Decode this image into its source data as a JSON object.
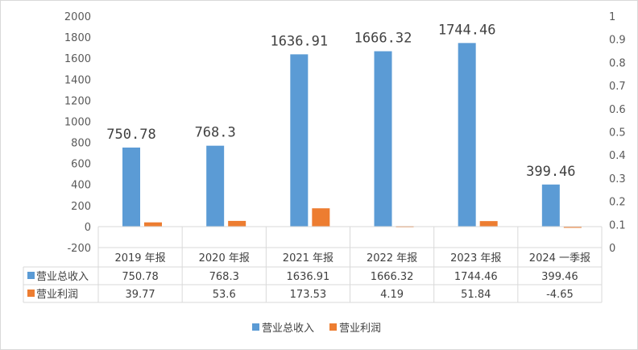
{
  "chart_data": {
    "type": "bar",
    "categories": [
      "2019 年报",
      "2020 年报",
      "2021 年报",
      "2022 年报",
      "2023 年报",
      "2024 一季报"
    ],
    "series": [
      {
        "name": "营业总收入",
        "color": "#5b9bd5",
        "values": [
          750.78,
          768.3,
          1636.91,
          1666.32,
          1744.46,
          399.46
        ],
        "display": [
          "750.78",
          "768.3",
          "1636.91",
          "1666.32",
          "1744.46",
          "399.46"
        ]
      },
      {
        "name": "营业利润",
        "color": "#ed7d31",
        "values": [
          39.77,
          53.6,
          173.53,
          4.19,
          51.84,
          -4.65
        ],
        "display": [
          "39.77",
          "53.6",
          "173.53",
          "4.19",
          "51.84",
          "-4.65"
        ]
      }
    ],
    "y_left": {
      "min": -200,
      "max": 2000,
      "ticks": [
        "-200",
        "0",
        "200",
        "400",
        "600",
        "800",
        "1000",
        "1200",
        "1400",
        "1600",
        "1800",
        "2000"
      ]
    },
    "y_right": {
      "min": 0,
      "max": 1,
      "ticks": [
        "0",
        "0.1",
        "0.2",
        "0.3",
        "0.4",
        "0.5",
        "0.6",
        "0.7",
        "0.8",
        "0.9",
        "1"
      ]
    },
    "grid": false,
    "legend": "bottom",
    "data_table": true
  }
}
